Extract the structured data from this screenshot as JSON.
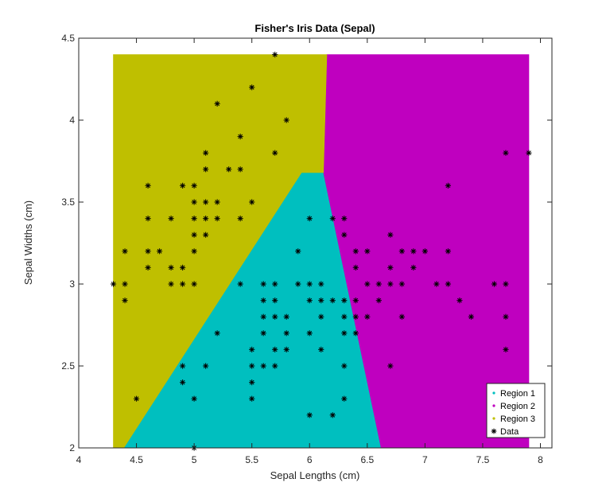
{
  "chart_data": {
    "type": "scatter",
    "title": "Fisher's Iris Data (Sepal)",
    "xlabel": "Sepal Lengths (cm)",
    "ylabel": "Sepal Widths (cm)",
    "xlim": [
      4,
      8.1
    ],
    "ylim": [
      2,
      4.5
    ],
    "xticks": [
      4,
      4.5,
      5,
      5.5,
      6,
      6.5,
      7,
      7.5,
      8
    ],
    "yticks": [
      2,
      2.5,
      3,
      3.5,
      4,
      4.5
    ],
    "xtick_labels": [
      "4",
      "4.5",
      "5",
      "5.5",
      "6",
      "6.5",
      "7",
      "7.5",
      "8"
    ],
    "ytick_labels": [
      "2",
      "2.5",
      "3",
      "3.5",
      "4",
      "4.5"
    ],
    "grid": false,
    "legend_position": "bottom-right",
    "regions": [
      {
        "name": "Region 1",
        "color": "#00bfbf",
        "polygon": [
          [
            4.39,
            2.0
          ],
          [
            6.62,
            2.0
          ],
          [
            6.12,
            3.68
          ],
          [
            5.93,
            3.68
          ]
        ]
      },
      {
        "name": "Region 2",
        "color": "#bf00bf",
        "polygon": [
          [
            6.62,
            2.0
          ],
          [
            7.9,
            2.0
          ],
          [
            7.9,
            4.4
          ],
          [
            6.15,
            4.4
          ],
          [
            6.12,
            3.68
          ]
        ]
      },
      {
        "name": "Region 3",
        "color": "#bfbf00",
        "polygon": [
          [
            4.3,
            2.0
          ],
          [
            4.39,
            2.0
          ],
          [
            5.93,
            3.68
          ],
          [
            6.12,
            3.68
          ],
          [
            6.15,
            4.4
          ],
          [
            4.3,
            4.4
          ]
        ]
      }
    ],
    "series": [
      {
        "name": "Data",
        "marker": "asterisk",
        "color": "#000000",
        "points": [
          [
            4.3,
            3.0
          ],
          [
            4.4,
            3.0
          ],
          [
            4.4,
            3.2
          ],
          [
            4.4,
            2.9
          ],
          [
            4.5,
            2.3
          ],
          [
            4.6,
            3.6
          ],
          [
            4.6,
            3.4
          ],
          [
            4.6,
            3.2
          ],
          [
            4.6,
            3.1
          ],
          [
            4.7,
            3.2
          ],
          [
            4.8,
            3.4
          ],
          [
            4.8,
            3.1
          ],
          [
            4.8,
            3.0
          ],
          [
            4.9,
            3.6
          ],
          [
            4.9,
            3.1
          ],
          [
            4.9,
            3.0
          ],
          [
            4.9,
            2.5
          ],
          [
            4.9,
            2.4
          ],
          [
            5.0,
            3.6
          ],
          [
            5.0,
            3.5
          ],
          [
            5.0,
            3.4
          ],
          [
            5.0,
            3.3
          ],
          [
            5.0,
            3.2
          ],
          [
            5.0,
            3.0
          ],
          [
            5.0,
            2.3
          ],
          [
            5.0,
            2.0
          ],
          [
            5.1,
            3.8
          ],
          [
            5.1,
            3.7
          ],
          [
            5.1,
            3.5
          ],
          [
            5.1,
            3.4
          ],
          [
            5.1,
            3.3
          ],
          [
            5.1,
            2.5
          ],
          [
            5.2,
            4.1
          ],
          [
            5.2,
            3.5
          ],
          [
            5.2,
            3.4
          ],
          [
            5.2,
            2.7
          ],
          [
            5.3,
            3.7
          ],
          [
            5.4,
            3.9
          ],
          [
            5.4,
            3.7
          ],
          [
            5.4,
            3.4
          ],
          [
            5.4,
            3.0
          ],
          [
            5.5,
            4.2
          ],
          [
            5.5,
            3.5
          ],
          [
            5.5,
            2.6
          ],
          [
            5.5,
            2.5
          ],
          [
            5.5,
            2.4
          ],
          [
            5.5,
            2.3
          ],
          [
            5.6,
            3.0
          ],
          [
            5.6,
            2.9
          ],
          [
            5.6,
            2.8
          ],
          [
            5.6,
            2.7
          ],
          [
            5.6,
            2.5
          ],
          [
            5.7,
            4.4
          ],
          [
            5.7,
            3.8
          ],
          [
            5.7,
            3.0
          ],
          [
            5.7,
            2.9
          ],
          [
            5.7,
            2.8
          ],
          [
            5.7,
            2.6
          ],
          [
            5.7,
            2.5
          ],
          [
            5.8,
            4.0
          ],
          [
            5.8,
            2.8
          ],
          [
            5.8,
            2.7
          ],
          [
            5.8,
            2.6
          ],
          [
            5.9,
            3.2
          ],
          [
            5.9,
            3.0
          ],
          [
            6.0,
            3.4
          ],
          [
            6.0,
            3.0
          ],
          [
            6.0,
            2.9
          ],
          [
            6.0,
            2.7
          ],
          [
            6.0,
            2.2
          ],
          [
            6.1,
            3.0
          ],
          [
            6.1,
            2.9
          ],
          [
            6.1,
            2.8
          ],
          [
            6.1,
            2.6
          ],
          [
            6.2,
            3.4
          ],
          [
            6.2,
            2.9
          ],
          [
            6.2,
            2.2
          ],
          [
            6.3,
            3.4
          ],
          [
            6.3,
            3.3
          ],
          [
            6.3,
            2.9
          ],
          [
            6.3,
            2.8
          ],
          [
            6.3,
            2.7
          ],
          [
            6.3,
            2.5
          ],
          [
            6.3,
            2.3
          ],
          [
            6.4,
            3.2
          ],
          [
            6.4,
            3.1
          ],
          [
            6.4,
            2.9
          ],
          [
            6.4,
            2.8
          ],
          [
            6.4,
            2.7
          ],
          [
            6.5,
            3.2
          ],
          [
            6.5,
            3.0
          ],
          [
            6.5,
            2.8
          ],
          [
            6.6,
            3.0
          ],
          [
            6.6,
            2.9
          ],
          [
            6.7,
            3.3
          ],
          [
            6.7,
            3.1
          ],
          [
            6.7,
            3.0
          ],
          [
            6.7,
            2.5
          ],
          [
            6.8,
            3.2
          ],
          [
            6.8,
            3.0
          ],
          [
            6.8,
            2.8
          ],
          [
            6.9,
            3.2
          ],
          [
            6.9,
            3.1
          ],
          [
            7.0,
            3.2
          ],
          [
            7.1,
            3.0
          ],
          [
            7.2,
            3.6
          ],
          [
            7.2,
            3.2
          ],
          [
            7.2,
            3.0
          ],
          [
            7.3,
            2.9
          ],
          [
            7.4,
            2.8
          ],
          [
            7.6,
            3.0
          ],
          [
            7.7,
            3.8
          ],
          [
            7.7,
            3.0
          ],
          [
            7.7,
            2.8
          ],
          [
            7.7,
            2.6
          ],
          [
            7.9,
            3.8
          ]
        ]
      }
    ],
    "legend": [
      {
        "label": "Region 1",
        "color": "#00bfbf",
        "marker": "dot"
      },
      {
        "label": "Region 2",
        "color": "#bf00bf",
        "marker": "dot"
      },
      {
        "label": "Region 3",
        "color": "#bfbf00",
        "marker": "dot"
      },
      {
        "label": "Data",
        "color": "#000000",
        "marker": "asterisk"
      }
    ]
  }
}
